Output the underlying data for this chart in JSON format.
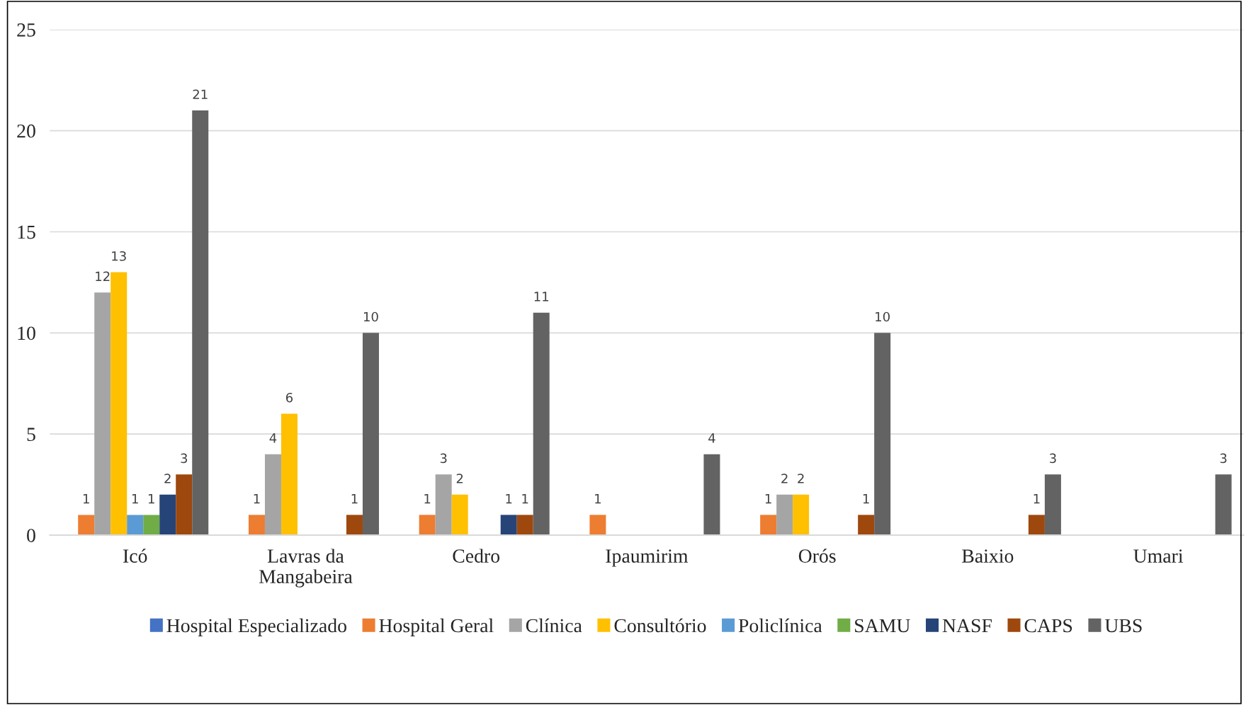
{
  "chart_data": {
    "type": "bar",
    "categories": [
      "Icó",
      "Lavras da\nMangabeira",
      "Cedro",
      "Ipaumirim",
      "Orós",
      "Baixio",
      "Umari"
    ],
    "series": [
      {
        "name": "Hospital Especializado",
        "color": "#4472c4",
        "values": [
          null,
          null,
          null,
          null,
          null,
          null,
          null
        ]
      },
      {
        "name": "Hospital Geral",
        "color": "#ed7d31",
        "values": [
          1,
          1,
          1,
          1,
          1,
          null,
          null
        ]
      },
      {
        "name": "Clínica",
        "color": "#a5a5a5",
        "values": [
          12,
          4,
          3,
          null,
          2,
          null,
          null
        ]
      },
      {
        "name": "Consultório",
        "color": "#ffc000",
        "values": [
          13,
          6,
          2,
          null,
          2,
          null,
          null
        ]
      },
      {
        "name": "Policlínica",
        "color": "#5b9bd5",
        "values": [
          1,
          null,
          null,
          null,
          null,
          null,
          null
        ]
      },
      {
        "name": "SAMU",
        "color": "#70ad47",
        "values": [
          1,
          null,
          null,
          null,
          null,
          null,
          null
        ]
      },
      {
        "name": "NASF",
        "color": "#264478",
        "values": [
          2,
          null,
          1,
          null,
          null,
          null,
          null
        ]
      },
      {
        "name": "CAPS",
        "color": "#9e480e",
        "values": [
          3,
          1,
          1,
          null,
          1,
          1,
          null
        ]
      },
      {
        "name": "UBS",
        "color": "#636363",
        "values": [
          21,
          10,
          11,
          4,
          10,
          3,
          3
        ]
      }
    ],
    "ylim": [
      0,
      25
    ],
    "yticks": [
      0,
      5,
      10,
      15,
      20,
      25
    ],
    "grid": "y",
    "legend": "bottom",
    "data_labels": true
  }
}
